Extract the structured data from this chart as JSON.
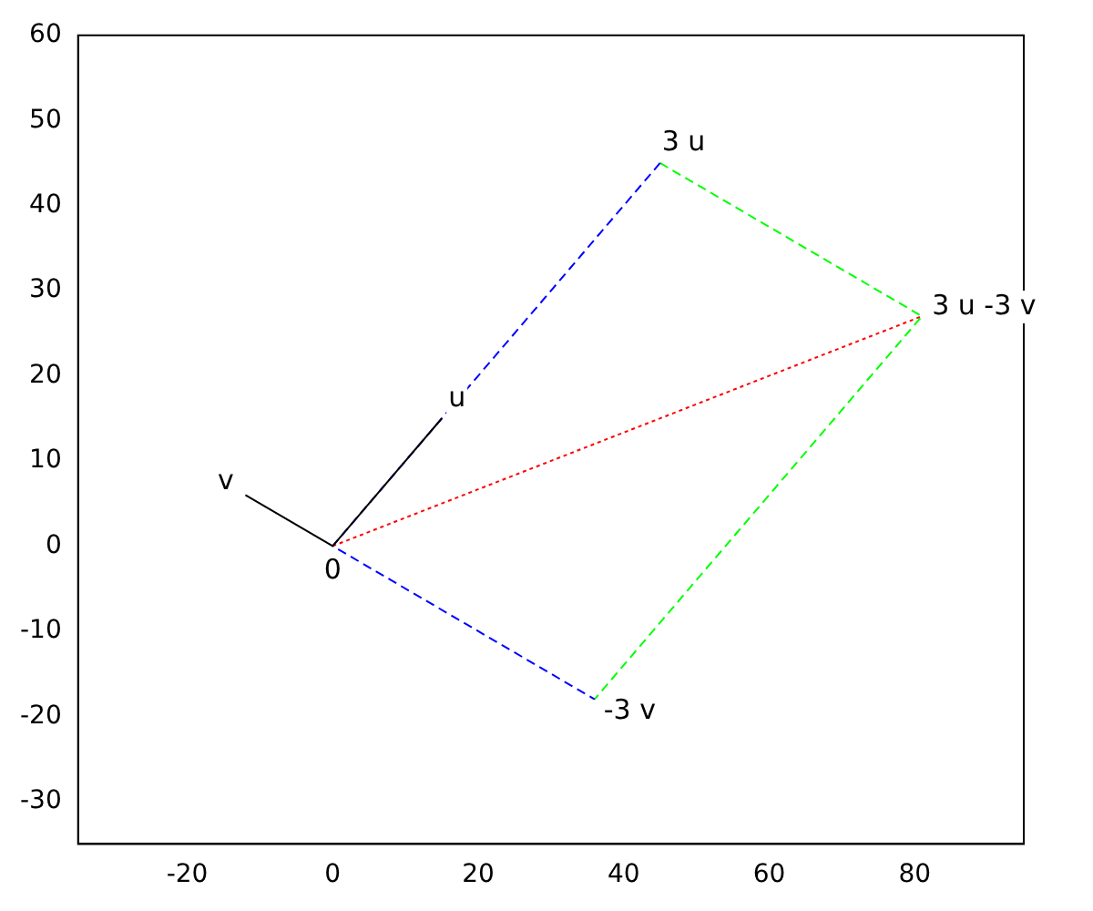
{
  "chart_data": {
    "type": "line",
    "xlim": [
      -35,
      95
    ],
    "ylim": [
      -35,
      60
    ],
    "xticks": [
      -20,
      0,
      20,
      40,
      60,
      80
    ],
    "yticks": [
      -30,
      -20,
      -10,
      0,
      10,
      20,
      30,
      40,
      50,
      60
    ],
    "grid": false,
    "legend": false,
    "marker": "none",
    "series": [
      {
        "color": "#000000",
        "x": [
          0,
          15
        ],
        "values": [
          0,
          15
        ],
        "line_style": "solid"
      },
      {
        "color": "#000000",
        "x": [
          0,
          -12
        ],
        "values": [
          0,
          6
        ],
        "line_style": "solid"
      },
      {
        "color": "#0000ff",
        "x": [
          45,
          0,
          36
        ],
        "values": [
          45,
          0,
          -18
        ],
        "line_style": "dashed"
      },
      {
        "color": "#00ff00",
        "x": [
          45,
          81,
          36
        ],
        "values": [
          45,
          27,
          -18
        ],
        "line_style": "dashed"
      },
      {
        "color": "#ff0000",
        "x": [
          0,
          81
        ],
        "values": [
          0,
          27
        ],
        "line_style": "dotted"
      }
    ],
    "annotations": [
      {
        "text": "u",
        "x": 15,
        "y": 15
      },
      {
        "text": "v",
        "x": -12,
        "y": 6
      },
      {
        "text": "0",
        "x": 0,
        "y": 0
      },
      {
        "text": "3 u",
        "x": 45,
        "y": 45
      },
      {
        "text": "3 u -3 v",
        "x": 81,
        "y": 27
      },
      {
        "text": "-3 v",
        "x": 36,
        "y": -18
      }
    ]
  }
}
